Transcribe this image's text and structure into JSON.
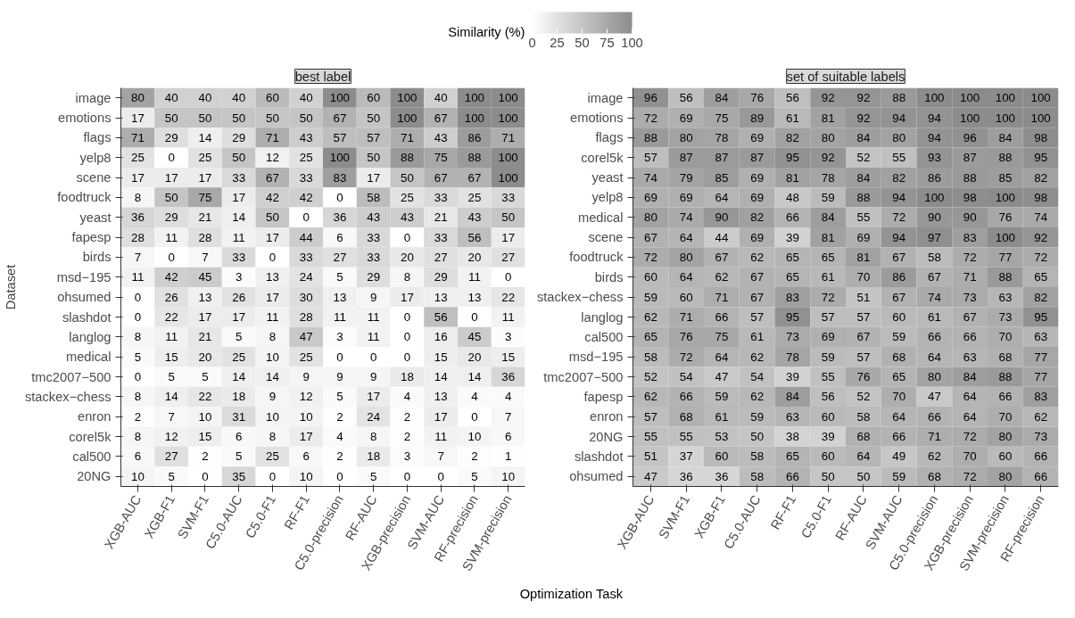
{
  "chart_data": [
    {
      "type": "heatmap",
      "title": "best label",
      "ylabel": "Dataset",
      "xlabel": "Optimization Task",
      "clabel": "Similarity (%)",
      "clim": [
        0,
        100
      ],
      "cticks": [
        0,
        25,
        50,
        75,
        100
      ],
      "data_labels": true,
      "grid": false,
      "categories": [
        "XGB-AUC",
        "XGB-F1",
        "SVM-F1",
        "C5.0-AUC",
        "C5.0-F1",
        "RF-F1",
        "C5.0-precision",
        "RF-AUC",
        "XGB-precision",
        "SVM-AUC",
        "RF-precision",
        "SVM-precision"
      ],
      "y_categories": [
        "image",
        "emotions",
        "flags",
        "yelp8",
        "scene",
        "foodtruck",
        "yeast",
        "fapesp",
        "birds",
        "msd−195",
        "ohsumed",
        "slashdot",
        "langlog",
        "medical",
        "tmc2007−500",
        "stackex−chess",
        "enron",
        "corel5k",
        "cal500",
        "20NG"
      ],
      "cells": [
        [
          80,
          40,
          40,
          40,
          60,
          40,
          100,
          60,
          100,
          40,
          100,
          100
        ],
        [
          17,
          50,
          50,
          50,
          50,
          50,
          67,
          50,
          100,
          67,
          100,
          100
        ],
        [
          71,
          29,
          14,
          29,
          71,
          43,
          57,
          57,
          71,
          43,
          86,
          71
        ],
        [
          25,
          0,
          25,
          50,
          12,
          25,
          100,
          50,
          88,
          75,
          88,
          100
        ],
        [
          17,
          17,
          17,
          33,
          67,
          33,
          83,
          17,
          50,
          67,
          67,
          100
        ],
        [
          8,
          50,
          75,
          17,
          42,
          42,
          0,
          58,
          25,
          33,
          25,
          33
        ],
        [
          36,
          29,
          21,
          14,
          50,
          0,
          36,
          43,
          43,
          21,
          43,
          50
        ],
        [
          28,
          11,
          28,
          11,
          17,
          44,
          6,
          33,
          0,
          33,
          56,
          17
        ],
        [
          7,
          0,
          7,
          33,
          0,
          33,
          27,
          33,
          20,
          27,
          20,
          27
        ],
        [
          11,
          42,
          45,
          3,
          13,
          24,
          5,
          29,
          8,
          29,
          11,
          0
        ],
        [
          0,
          26,
          13,
          26,
          17,
          30,
          13,
          9,
          17,
          13,
          13,
          22
        ],
        [
          0,
          22,
          17,
          17,
          11,
          28,
          11,
          11,
          0,
          56,
          0,
          11
        ],
        [
          8,
          11,
          21,
          5,
          8,
          47,
          3,
          11,
          0,
          16,
          45,
          3
        ],
        [
          5,
          15,
          20,
          25,
          10,
          25,
          0,
          0,
          0,
          15,
          20,
          15
        ],
        [
          0,
          5,
          5,
          14,
          14,
          9,
          9,
          9,
          18,
          14,
          14,
          36
        ],
        [
          8,
          14,
          22,
          18,
          9,
          12,
          5,
          17,
          4,
          13,
          4,
          4
        ],
        [
          2,
          7,
          10,
          31,
          10,
          10,
          2,
          24,
          2,
          17,
          0,
          7
        ],
        [
          8,
          12,
          15,
          6,
          8,
          17,
          4,
          8,
          2,
          11,
          10,
          6
        ],
        [
          6,
          27,
          2,
          5,
          25,
          6,
          2,
          18,
          3,
          7,
          2,
          1
        ],
        [
          10,
          5,
          0,
          35,
          0,
          10,
          0,
          5,
          0,
          0,
          5,
          10
        ]
      ]
    },
    {
      "type": "heatmap",
      "title": "set of suitable labels",
      "data_labels": true,
      "grid": false,
      "categories": [
        "XGB-AUC",
        "SVM-F1",
        "XGB-F1",
        "C5.0-AUC",
        "RF-F1",
        "C5.0-F1",
        "RF-AUC",
        "SVM-AUC",
        "C5.0-precision",
        "XGB-precision",
        "SVM-precision",
        "RF-precision"
      ],
      "y_categories": [
        "image",
        "emotions",
        "flags",
        "corel5k",
        "yeast",
        "yelp8",
        "medical",
        "scene",
        "foodtruck",
        "birds",
        "stackex−chess",
        "langlog",
        "cal500",
        "msd−195",
        "tmc2007−500",
        "fapesp",
        "enron",
        "20NG",
        "slashdot",
        "ohsumed"
      ],
      "cells": [
        [
          96,
          56,
          84,
          76,
          56,
          92,
          92,
          88,
          100,
          100,
          100,
          100
        ],
        [
          72,
          69,
          75,
          89,
          61,
          81,
          92,
          94,
          94,
          100,
          100,
          100
        ],
        [
          88,
          80,
          78,
          69,
          82,
          80,
          84,
          80,
          94,
          96,
          84,
          98
        ],
        [
          57,
          87,
          87,
          87,
          95,
          92,
          52,
          55,
          93,
          87,
          88,
          95
        ],
        [
          74,
          79,
          85,
          69,
          81,
          78,
          84,
          82,
          86,
          88,
          85,
          82
        ],
        [
          69,
          69,
          64,
          69,
          48,
          59,
          88,
          94,
          100,
          98,
          100,
          98
        ],
        [
          80,
          74,
          90,
          82,
          66,
          84,
          55,
          72,
          90,
          90,
          76,
          74
        ],
        [
          67,
          64,
          44,
          69,
          39,
          81,
          69,
          94,
          97,
          83,
          100,
          92
        ],
        [
          72,
          80,
          67,
          62,
          65,
          65,
          81,
          67,
          58,
          72,
          77,
          72
        ],
        [
          60,
          64,
          62,
          67,
          65,
          61,
          70,
          86,
          67,
          71,
          88,
          65
        ],
        [
          59,
          60,
          71,
          67,
          83,
          72,
          51,
          67,
          74,
          73,
          63,
          82
        ],
        [
          62,
          71,
          66,
          57,
          95,
          57,
          57,
          60,
          61,
          67,
          73,
          95
        ],
        [
          65,
          76,
          75,
          61,
          73,
          69,
          67,
          59,
          66,
          66,
          70,
          63
        ],
        [
          58,
          72,
          64,
          62,
          78,
          59,
          57,
          68,
          64,
          63,
          68,
          77
        ],
        [
          52,
          54,
          47,
          54,
          39,
          55,
          76,
          65,
          80,
          84,
          88,
          77
        ],
        [
          62,
          66,
          59,
          62,
          84,
          56,
          52,
          70,
          47,
          64,
          66,
          83
        ],
        [
          57,
          68,
          61,
          59,
          63,
          60,
          58,
          64,
          66,
          64,
          70,
          62
        ],
        [
          55,
          55,
          53,
          50,
          38,
          39,
          68,
          66,
          71,
          72,
          80,
          73
        ],
        [
          51,
          37,
          60,
          58,
          65,
          60,
          64,
          49,
          62,
          70,
          60,
          66
        ],
        [
          47,
          36,
          36,
          58,
          66,
          50,
          50,
          59,
          68,
          72,
          80,
          66
        ]
      ]
    }
  ]
}
